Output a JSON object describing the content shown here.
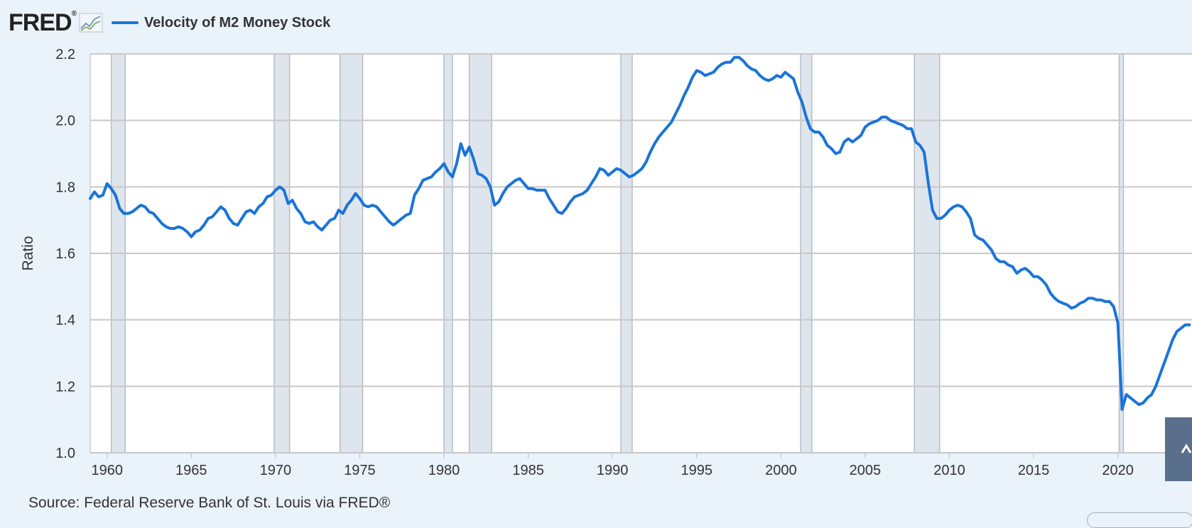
{
  "header": {
    "logo_text": "FRED",
    "logo_mark": "®",
    "trend_icon": "line-chart-icon",
    "legend_label": "Velocity of M2 Money Stock",
    "line_color": "#1a74d8"
  },
  "source_text": "Source: Federal Reserve Bank of St. Louis via FRED®",
  "chart_data": {
    "type": "line",
    "title": "",
    "xlabel": "",
    "ylabel": "Ratio",
    "ylim": [
      1.0,
      2.2
    ],
    "xlim": [
      1959.0,
      2024.4
    ],
    "y_ticks": [
      1.0,
      1.2,
      1.4,
      1.6,
      1.8,
      2.0,
      2.2
    ],
    "y_tick_labels": [
      "1.0",
      "1.2",
      "1.4",
      "1.6",
      "1.8",
      "2.0",
      "2.2"
    ],
    "x_ticks": [
      1960,
      1965,
      1970,
      1975,
      1980,
      1985,
      1990,
      1995,
      2000,
      2005,
      2010,
      2015,
      2020
    ],
    "x_tick_labels": [
      "1960",
      "1965",
      "1970",
      "1975",
      "1980",
      "1985",
      "1990",
      "1995",
      "2000",
      "2005",
      "2010",
      "2015",
      "2020"
    ],
    "grid": true,
    "legend": "top-left",
    "recession_color": "#dfe5ec",
    "recessions": [
      [
        1960.25,
        1961.08
      ],
      [
        1969.92,
        1970.83
      ],
      [
        1973.83,
        1975.17
      ],
      [
        1980.0,
        1980.5
      ],
      [
        1981.5,
        1982.83
      ],
      [
        1990.5,
        1991.17
      ],
      [
        2001.17,
        2001.83
      ],
      [
        2007.92,
        2009.42
      ],
      [
        2020.08,
        2020.33
      ]
    ],
    "series": [
      {
        "name": "Velocity of M2 Money Stock",
        "color": "#1a74d8",
        "points": [
          [
            1959.0,
            1.765
          ],
          [
            1959.25,
            1.785
          ],
          [
            1959.5,
            1.77
          ],
          [
            1959.75,
            1.775
          ],
          [
            1960.0,
            1.81
          ],
          [
            1960.25,
            1.795
          ],
          [
            1960.5,
            1.775
          ],
          [
            1960.75,
            1.735
          ],
          [
            1961.0,
            1.72
          ],
          [
            1961.25,
            1.72
          ],
          [
            1961.5,
            1.725
          ],
          [
            1961.75,
            1.735
          ],
          [
            1962.0,
            1.745
          ],
          [
            1962.25,
            1.74
          ],
          [
            1962.5,
            1.725
          ],
          [
            1962.75,
            1.72
          ],
          [
            1963.0,
            1.705
          ],
          [
            1963.25,
            1.69
          ],
          [
            1963.5,
            1.68
          ],
          [
            1963.75,
            1.675
          ],
          [
            1964.0,
            1.675
          ],
          [
            1964.25,
            1.68
          ],
          [
            1964.5,
            1.675
          ],
          [
            1964.75,
            1.665
          ],
          [
            1965.0,
            1.65
          ],
          [
            1965.25,
            1.665
          ],
          [
            1965.5,
            1.67
          ],
          [
            1965.75,
            1.685
          ],
          [
            1966.0,
            1.705
          ],
          [
            1966.25,
            1.71
          ],
          [
            1966.5,
            1.725
          ],
          [
            1966.75,
            1.74
          ],
          [
            1967.0,
            1.73
          ],
          [
            1967.25,
            1.705
          ],
          [
            1967.5,
            1.69
          ],
          [
            1967.75,
            1.685
          ],
          [
            1968.0,
            1.705
          ],
          [
            1968.25,
            1.725
          ],
          [
            1968.5,
            1.73
          ],
          [
            1968.75,
            1.72
          ],
          [
            1969.0,
            1.74
          ],
          [
            1969.25,
            1.75
          ],
          [
            1969.5,
            1.77
          ],
          [
            1969.75,
            1.775
          ],
          [
            1970.0,
            1.79
          ],
          [
            1970.25,
            1.8
          ],
          [
            1970.5,
            1.79
          ],
          [
            1970.75,
            1.75
          ],
          [
            1971.0,
            1.76
          ],
          [
            1971.25,
            1.735
          ],
          [
            1971.5,
            1.72
          ],
          [
            1971.75,
            1.695
          ],
          [
            1972.0,
            1.69
          ],
          [
            1972.25,
            1.695
          ],
          [
            1972.5,
            1.68
          ],
          [
            1972.75,
            1.67
          ],
          [
            1973.0,
            1.685
          ],
          [
            1973.25,
            1.7
          ],
          [
            1973.5,
            1.705
          ],
          [
            1973.75,
            1.73
          ],
          [
            1974.0,
            1.72
          ],
          [
            1974.25,
            1.745
          ],
          [
            1974.5,
            1.76
          ],
          [
            1974.75,
            1.78
          ],
          [
            1975.0,
            1.765
          ],
          [
            1975.25,
            1.745
          ],
          [
            1975.5,
            1.74
          ],
          [
            1975.75,
            1.745
          ],
          [
            1976.0,
            1.74
          ],
          [
            1976.25,
            1.725
          ],
          [
            1976.5,
            1.71
          ],
          [
            1976.75,
            1.695
          ],
          [
            1977.0,
            1.685
          ],
          [
            1977.25,
            1.695
          ],
          [
            1977.5,
            1.705
          ],
          [
            1977.75,
            1.715
          ],
          [
            1978.0,
            1.72
          ],
          [
            1978.25,
            1.775
          ],
          [
            1978.5,
            1.795
          ],
          [
            1978.75,
            1.82
          ],
          [
            1979.0,
            1.825
          ],
          [
            1979.25,
            1.83
          ],
          [
            1979.5,
            1.845
          ],
          [
            1979.75,
            1.855
          ],
          [
            1980.0,
            1.87
          ],
          [
            1980.25,
            1.845
          ],
          [
            1980.5,
            1.83
          ],
          [
            1980.75,
            1.87
          ],
          [
            1981.0,
            1.93
          ],
          [
            1981.25,
            1.895
          ],
          [
            1981.5,
            1.92
          ],
          [
            1981.75,
            1.885
          ],
          [
            1982.0,
            1.84
          ],
          [
            1982.25,
            1.835
          ],
          [
            1982.5,
            1.825
          ],
          [
            1982.75,
            1.8
          ],
          [
            1983.0,
            1.745
          ],
          [
            1983.25,
            1.755
          ],
          [
            1983.5,
            1.78
          ],
          [
            1983.75,
            1.8
          ],
          [
            1984.0,
            1.81
          ],
          [
            1984.25,
            1.82
          ],
          [
            1984.5,
            1.825
          ],
          [
            1984.75,
            1.81
          ],
          [
            1985.0,
            1.795
          ],
          [
            1985.25,
            1.795
          ],
          [
            1985.5,
            1.79
          ],
          [
            1985.75,
            1.79
          ],
          [
            1986.0,
            1.79
          ],
          [
            1986.25,
            1.765
          ],
          [
            1986.5,
            1.745
          ],
          [
            1986.75,
            1.725
          ],
          [
            1987.0,
            1.72
          ],
          [
            1987.25,
            1.735
          ],
          [
            1987.5,
            1.755
          ],
          [
            1987.75,
            1.77
          ],
          [
            1988.0,
            1.775
          ],
          [
            1988.25,
            1.78
          ],
          [
            1988.5,
            1.79
          ],
          [
            1988.75,
            1.81
          ],
          [
            1989.0,
            1.83
          ],
          [
            1989.25,
            1.855
          ],
          [
            1989.5,
            1.85
          ],
          [
            1989.75,
            1.835
          ],
          [
            1990.0,
            1.845
          ],
          [
            1990.25,
            1.855
          ],
          [
            1990.5,
            1.85
          ],
          [
            1990.75,
            1.84
          ],
          [
            1991.0,
            1.83
          ],
          [
            1991.25,
            1.835
          ],
          [
            1991.5,
            1.845
          ],
          [
            1991.75,
            1.855
          ],
          [
            1992.0,
            1.875
          ],
          [
            1992.25,
            1.905
          ],
          [
            1992.5,
            1.93
          ],
          [
            1992.75,
            1.95
          ],
          [
            1993.0,
            1.965
          ],
          [
            1993.25,
            1.98
          ],
          [
            1993.5,
            1.995
          ],
          [
            1993.75,
            2.02
          ],
          [
            1994.0,
            2.045
          ],
          [
            1994.25,
            2.075
          ],
          [
            1994.5,
            2.1
          ],
          [
            1994.75,
            2.13
          ],
          [
            1995.0,
            2.15
          ],
          [
            1995.25,
            2.145
          ],
          [
            1995.5,
            2.135
          ],
          [
            1995.75,
            2.14
          ],
          [
            1996.0,
            2.145
          ],
          [
            1996.25,
            2.16
          ],
          [
            1996.5,
            2.17
          ],
          [
            1996.75,
            2.175
          ],
          [
            1997.0,
            2.175
          ],
          [
            1997.25,
            2.19
          ],
          [
            1997.5,
            2.19
          ],
          [
            1997.75,
            2.18
          ],
          [
            1998.0,
            2.165
          ],
          [
            1998.25,
            2.155
          ],
          [
            1998.5,
            2.15
          ],
          [
            1998.75,
            2.135
          ],
          [
            1999.0,
            2.125
          ],
          [
            1999.25,
            2.12
          ],
          [
            1999.5,
            2.125
          ],
          [
            1999.75,
            2.135
          ],
          [
            2000.0,
            2.13
          ],
          [
            2000.25,
            2.145
          ],
          [
            2000.5,
            2.135
          ],
          [
            2000.75,
            2.125
          ],
          [
            2001.0,
            2.085
          ],
          [
            2001.25,
            2.055
          ],
          [
            2001.5,
            2.01
          ],
          [
            2001.75,
            1.975
          ],
          [
            2002.0,
            1.965
          ],
          [
            2002.25,
            1.965
          ],
          [
            2002.5,
            1.95
          ],
          [
            2002.75,
            1.925
          ],
          [
            2003.0,
            1.915
          ],
          [
            2003.25,
            1.9
          ],
          [
            2003.5,
            1.905
          ],
          [
            2003.75,
            1.935
          ],
          [
            2004.0,
            1.945
          ],
          [
            2004.25,
            1.935
          ],
          [
            2004.5,
            1.945
          ],
          [
            2004.75,
            1.955
          ],
          [
            2005.0,
            1.98
          ],
          [
            2005.25,
            1.99
          ],
          [
            2005.5,
            1.995
          ],
          [
            2005.75,
            2.0
          ],
          [
            2006.0,
            2.01
          ],
          [
            2006.25,
            2.01
          ],
          [
            2006.5,
            2.0
          ],
          [
            2006.75,
            1.995
          ],
          [
            2007.0,
            1.99
          ],
          [
            2007.25,
            1.985
          ],
          [
            2007.5,
            1.975
          ],
          [
            2007.75,
            1.975
          ],
          [
            2008.0,
            1.935
          ],
          [
            2008.25,
            1.925
          ],
          [
            2008.5,
            1.905
          ],
          [
            2008.75,
            1.81
          ],
          [
            2009.0,
            1.73
          ],
          [
            2009.25,
            1.705
          ],
          [
            2009.5,
            1.705
          ],
          [
            2009.75,
            1.715
          ],
          [
            2010.0,
            1.73
          ],
          [
            2010.25,
            1.74
          ],
          [
            2010.5,
            1.745
          ],
          [
            2010.75,
            1.74
          ],
          [
            2011.0,
            1.725
          ],
          [
            2011.25,
            1.705
          ],
          [
            2011.5,
            1.655
          ],
          [
            2011.75,
            1.645
          ],
          [
            2012.0,
            1.64
          ],
          [
            2012.25,
            1.625
          ],
          [
            2012.5,
            1.61
          ],
          [
            2012.75,
            1.585
          ],
          [
            2013.0,
            1.575
          ],
          [
            2013.25,
            1.575
          ],
          [
            2013.5,
            1.565
          ],
          [
            2013.75,
            1.56
          ],
          [
            2014.0,
            1.54
          ],
          [
            2014.25,
            1.55
          ],
          [
            2014.5,
            1.555
          ],
          [
            2014.75,
            1.545
          ],
          [
            2015.0,
            1.53
          ],
          [
            2015.25,
            1.53
          ],
          [
            2015.5,
            1.52
          ],
          [
            2015.75,
            1.505
          ],
          [
            2016.0,
            1.48
          ],
          [
            2016.25,
            1.465
          ],
          [
            2016.5,
            1.455
          ],
          [
            2016.75,
            1.45
          ],
          [
            2017.0,
            1.445
          ],
          [
            2017.25,
            1.435
          ],
          [
            2017.5,
            1.44
          ],
          [
            2017.75,
            1.45
          ],
          [
            2018.0,
            1.455
          ],
          [
            2018.25,
            1.465
          ],
          [
            2018.5,
            1.465
          ],
          [
            2018.75,
            1.46
          ],
          [
            2019.0,
            1.46
          ],
          [
            2019.25,
            1.455
          ],
          [
            2019.5,
            1.455
          ],
          [
            2019.75,
            1.44
          ],
          [
            2020.0,
            1.39
          ],
          [
            2020.25,
            1.13
          ],
          [
            2020.5,
            1.175
          ],
          [
            2020.75,
            1.165
          ],
          [
            2021.0,
            1.155
          ],
          [
            2021.25,
            1.145
          ],
          [
            2021.5,
            1.15
          ],
          [
            2021.75,
            1.165
          ],
          [
            2022.0,
            1.175
          ],
          [
            2022.25,
            1.2
          ],
          [
            2022.5,
            1.235
          ],
          [
            2022.75,
            1.27
          ],
          [
            2023.0,
            1.305
          ],
          [
            2023.25,
            1.34
          ],
          [
            2023.5,
            1.365
          ],
          [
            2023.75,
            1.375
          ],
          [
            2024.0,
            1.385
          ],
          [
            2024.25,
            1.385
          ]
        ]
      }
    ]
  }
}
